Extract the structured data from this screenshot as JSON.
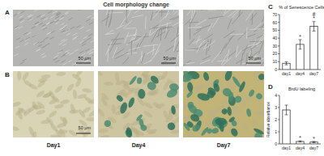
{
  "figure": {
    "A": {
      "label": "A",
      "title": "Cell morphology change",
      "scale_bars": [
        "50 μm",
        "50 μm",
        "50 μm"
      ]
    },
    "B": {
      "label": "B",
      "scale_bars": [
        "50 μm"
      ]
    },
    "day_labels": [
      "Day1",
      "Day4",
      "Day7"
    ]
  },
  "chart_data": [
    {
      "type": "bar",
      "panel": "C",
      "title": "% of Senescence Cells",
      "categories": [
        "day1",
        "day4",
        "day7"
      ],
      "values": [
        8,
        32,
        55
      ],
      "errors": [
        2,
        6,
        6
      ],
      "color": "#ffffff",
      "ylim": [
        0,
        70
      ],
      "yticks": [
        0,
        10,
        20,
        30,
        40,
        50,
        60,
        70
      ],
      "annotations": [
        {
          "category": "day4",
          "text": "*"
        },
        {
          "category": "day7",
          "text": "*"
        },
        {
          "category": "day7",
          "text": "#"
        }
      ]
    },
    {
      "type": "bar",
      "panel": "D",
      "title": "BrdU labeling",
      "y_label": "Relative absorbance",
      "categories": [
        "day1",
        "day4",
        "day7"
      ],
      "values": [
        2.8,
        0.2,
        0.15
      ],
      "errors": [
        0.4,
        0.05,
        0.05
      ],
      "color": "#ffffff",
      "ylim": [
        0,
        4
      ],
      "yticks": [
        0,
        1,
        2,
        3,
        4
      ],
      "annotations": [
        {
          "category": "day4",
          "text": "*"
        },
        {
          "category": "day7",
          "text": "*"
        }
      ]
    }
  ]
}
